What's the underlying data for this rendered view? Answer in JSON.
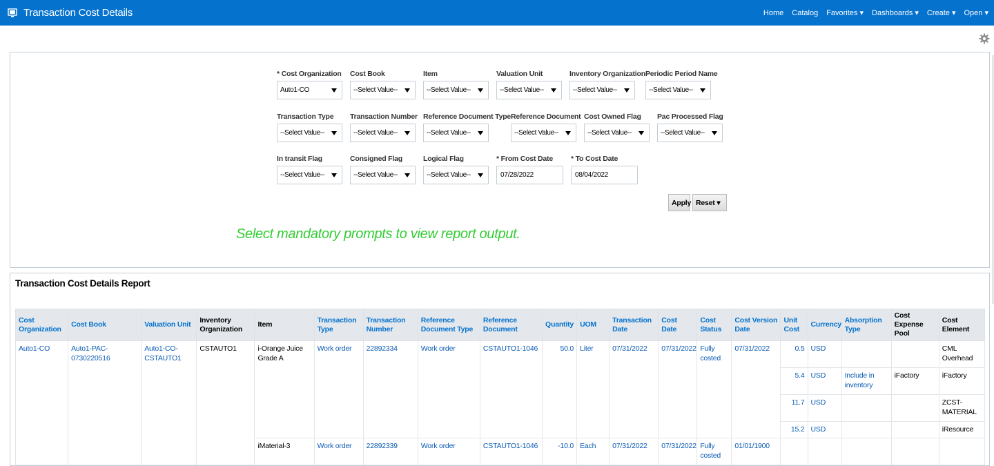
{
  "header": {
    "title": "Transaction Cost Details",
    "nav": [
      "Home",
      "Catalog",
      "Favorites ▾",
      "Dashboards ▾",
      "Create ▾",
      "Open ▾"
    ]
  },
  "prompts": {
    "row1": {
      "cost_organization": {
        "label": "* Cost Organization",
        "value": "Auto1-CO"
      },
      "cost_book": {
        "label": "Cost Book",
        "value": "--Select Value--"
      },
      "item": {
        "label": "Item",
        "value": "--Select Value--"
      },
      "valuation_unit": {
        "label": "Valuation Unit",
        "value": "--Select Value--"
      },
      "inventory_organization": {
        "label": "Inventory Organization",
        "value": "--Select Value--"
      },
      "periodic_period_name": {
        "label": "Periodic Period Name",
        "value": "--Select Value--"
      }
    },
    "row2": {
      "transaction_type": {
        "label": "Transaction Type",
        "value": "--Select Value--"
      },
      "transaction_number": {
        "label": "Transaction Number",
        "value": "--Select Value--"
      },
      "reference_document_type": {
        "label": "Reference Document Type",
        "value": "--Select Value--"
      },
      "reference_document": {
        "label": "Reference Document",
        "value": "--Select Value--"
      },
      "cost_owned_flag": {
        "label": "Cost Owned Flag",
        "value": "--Select Value--"
      },
      "pac_processed_flag": {
        "label": "Pac Processed Flag",
        "value": "--Select Value--"
      }
    },
    "row3": {
      "in_transit_flag": {
        "label": "In transit Flag",
        "value": "--Select Value--"
      },
      "consigned_flag": {
        "label": "Consigned Flag",
        "value": "--Select Value--"
      },
      "logical_flag": {
        "label": "Logical Flag",
        "value": "--Select Value--"
      },
      "from_cost_date": {
        "label": "* From Cost Date",
        "value": "07/28/2022"
      },
      "to_cost_date": {
        "label": "* To Cost Date",
        "value": "08/04/2022"
      }
    },
    "apply_label": "Apply",
    "reset_label": "Reset ▾",
    "notice": "Select mandatory prompts to view report output."
  },
  "report": {
    "title": "Transaction Cost Details Report",
    "columns": [
      "Cost Organization",
      "Cost Book",
      "Valuation Unit",
      "Inventory Organization",
      "Item",
      "Transaction Type",
      "Transaction Number",
      "Reference Document Type",
      "Reference Document",
      "Quantity",
      "UOM",
      "Transaction Date",
      "Cost Date",
      "Cost Status",
      "Cost Version Date",
      "Unit Cost",
      "Currency",
      "Absorption Type",
      "Cost Expense Pool",
      "Cost Element"
    ],
    "rows": [
      {
        "cost_org": "Auto1-CO",
        "cost_book": "Auto1-PAC-0730220516",
        "valuation_unit": "Auto1-CO-CSTAUTO1",
        "inv_org": "CSTAUTO1",
        "item": "i-Orange Juice Grade A",
        "txn_type": "Work order",
        "txn_number": "22892334",
        "ref_doc_type": "Work order",
        "ref_doc": "CSTAUTO1-1046",
        "quantity": "50.0",
        "uom": "Liter",
        "txn_date": "07/31/2022",
        "cost_date": "07/31/2022",
        "cost_status": "Fully costed",
        "cost_version_date": "07/31/2022",
        "unit_cost": "0.5",
        "currency": "USD",
        "absorption_type": "",
        "expense_pool": "",
        "cost_element": "CML Overhead"
      },
      {
        "unit_cost": "5.4",
        "currency": "USD",
        "absorption_type": "Include in inventory",
        "expense_pool": "iFactory",
        "cost_element": "iFactory"
      },
      {
        "unit_cost": "11.7",
        "currency": "USD",
        "absorption_type": "",
        "expense_pool": "",
        "cost_element": "ZCST-MATERIAL"
      },
      {
        "unit_cost": "15.2",
        "currency": "USD",
        "absorption_type": "",
        "expense_pool": "",
        "cost_element": "iResource"
      },
      {
        "item": "iMaterial-3",
        "txn_type": "Work order",
        "txn_number": "22892339",
        "ref_doc_type": "Work order",
        "ref_doc": "CSTAUTO1-1046",
        "quantity": "-10.0",
        "uom": "Each",
        "txn_date": "07/31/2022",
        "cost_date": "07/31/2022",
        "cost_status": "Fully costed",
        "cost_version_date": "01/01/1900"
      }
    ]
  }
}
